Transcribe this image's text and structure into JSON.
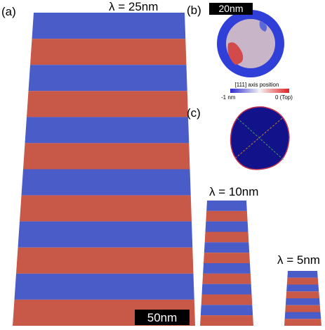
{
  "panels": {
    "a": {
      "label": "(a)",
      "wavelength": "λ = 25nm",
      "scale_bar": "50nm"
    },
    "b": {
      "label": "(b)",
      "scale_bar": "20nm",
      "colorbar_title": "[111] axis position",
      "colorbar_min": "-1 nm",
      "colorbar_max": "0 (Top)"
    },
    "c": {
      "label": "(c)"
    },
    "d": {
      "wavelength": "λ = 10nm"
    },
    "e": {
      "wavelength": "λ = 5nm"
    }
  }
}
